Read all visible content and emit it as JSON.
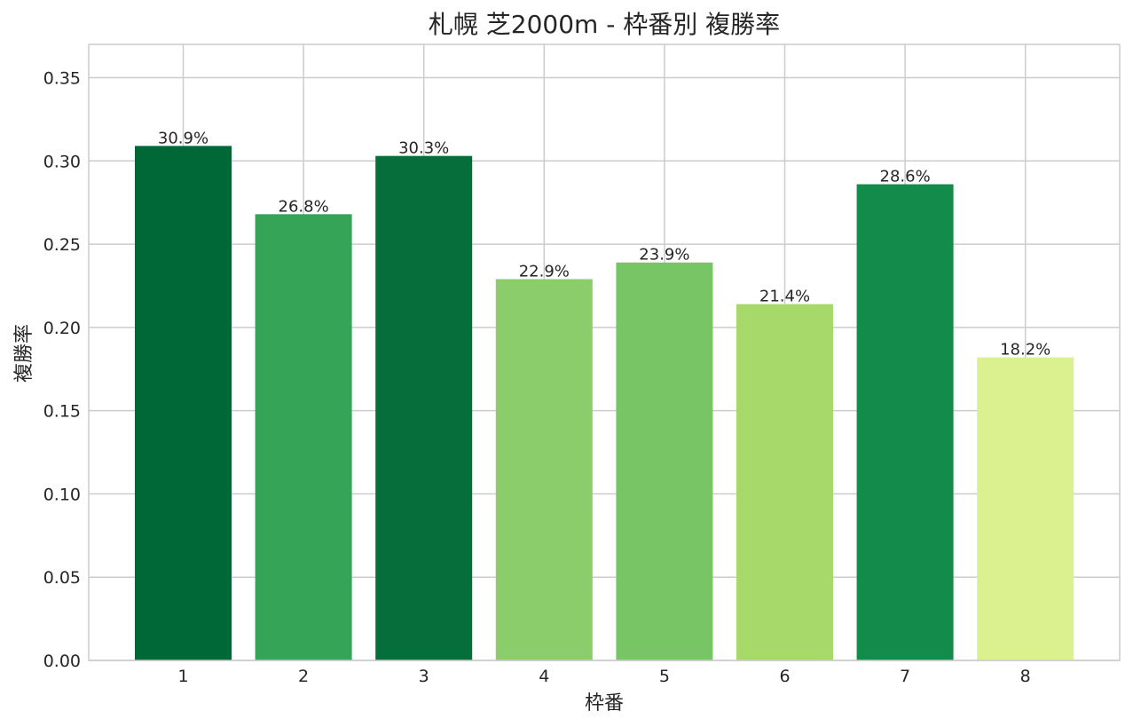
{
  "chart_data": {
    "type": "bar",
    "title": "札幌 芝2000m - 枠番別 複勝率",
    "xlabel": "枠番",
    "ylabel": "複勝率",
    "categories": [
      "1",
      "2",
      "3",
      "4",
      "5",
      "6",
      "7",
      "8"
    ],
    "values": [
      0.309,
      0.268,
      0.303,
      0.229,
      0.239,
      0.214,
      0.286,
      0.182
    ],
    "value_labels": [
      "30.9%",
      "26.8%",
      "30.3%",
      "22.9%",
      "23.9%",
      "21.4%",
      "28.6%",
      "18.2%"
    ],
    "bar_colors": [
      "#006837",
      "#35a456",
      "#066e3a",
      "#8ccd6b",
      "#78c566",
      "#a6d96a",
      "#138b4a",
      "#dbf08f"
    ],
    "ylim": [
      0,
      0.37
    ],
    "yticks": [
      0.0,
      0.05,
      0.1,
      0.15,
      0.2,
      0.25,
      0.3,
      0.35
    ],
    "ytick_labels": [
      "0.00",
      "0.05",
      "0.10",
      "0.15",
      "0.20",
      "0.25",
      "0.30",
      "0.35"
    ],
    "grid": true,
    "legend": "none"
  },
  "colors": {
    "background": "#ffffff",
    "grid": "#cccccc",
    "text": "#262626"
  }
}
